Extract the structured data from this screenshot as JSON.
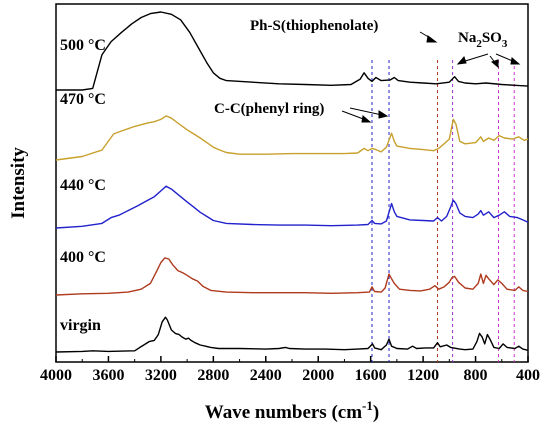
{
  "chart_data": {
    "type": "line",
    "title": "",
    "xlabel": "Wave numbers (cm",
    "xlabel_sup": "-1",
    "xlabel_close": ")",
    "ylabel": "Intensity",
    "xlim": [
      4000,
      400
    ],
    "x_reversed": true,
    "xticks": [
      4000,
      3600,
      3200,
      2800,
      2400,
      2000,
      1600,
      1200,
      800,
      400
    ],
    "yticks": false,
    "grid": false,
    "series": [
      {
        "name": "500 °C",
        "color": "#000000",
        "baseline": 4.0,
        "points": [
          [
            4000,
            0
          ],
          [
            3800,
            0
          ],
          [
            3720,
            0.02
          ],
          [
            3650,
            0.45
          ],
          [
            3580,
            0.62
          ],
          [
            3500,
            0.74
          ],
          [
            3420,
            0.85
          ],
          [
            3350,
            0.93
          ],
          [
            3280,
            0.98
          ],
          [
            3200,
            1.0
          ],
          [
            3120,
            0.97
          ],
          [
            3050,
            0.9
          ],
          [
            2980,
            0.74
          ],
          [
            2900,
            0.5
          ],
          [
            2850,
            0.35
          ],
          [
            2800,
            0.22
          ],
          [
            2750,
            0.15
          ],
          [
            2700,
            0.12
          ],
          [
            2500,
            0.1
          ],
          [
            2300,
            0.08
          ],
          [
            2100,
            0.07
          ],
          [
            1900,
            0.06
          ],
          [
            1750,
            0.07
          ],
          [
            1680,
            0.14
          ],
          [
            1650,
            0.22
          ],
          [
            1620,
            0.15
          ],
          [
            1590,
            0.11
          ],
          [
            1560,
            0.16
          ],
          [
            1520,
            0.12
          ],
          [
            1450,
            0.13
          ],
          [
            1420,
            0.16
          ],
          [
            1390,
            0.12
          ],
          [
            1300,
            0.1
          ],
          [
            1200,
            0.09
          ],
          [
            1100,
            0.08
          ],
          [
            1000,
            0.1
          ],
          [
            960,
            0.17
          ],
          [
            930,
            0.11
          ],
          [
            880,
            0.09
          ],
          [
            800,
            0.08
          ],
          [
            720,
            0.09
          ],
          [
            600,
            0.07
          ],
          [
            500,
            0.06
          ],
          [
            400,
            0.05
          ]
        ]
      },
      {
        "name": "470 °C",
        "color": "#c8a02c",
        "baseline": 3.0,
        "points": [
          [
            4000,
            0
          ],
          [
            3800,
            0.06
          ],
          [
            3650,
            0.17
          ],
          [
            3560,
            0.45
          ],
          [
            3500,
            0.5
          ],
          [
            3400,
            0.58
          ],
          [
            3300,
            0.64
          ],
          [
            3250,
            0.66
          ],
          [
            3200,
            0.7
          ],
          [
            3160,
            0.76
          ],
          [
            3120,
            0.72
          ],
          [
            3060,
            0.62
          ],
          [
            3000,
            0.52
          ],
          [
            2950,
            0.45
          ],
          [
            2900,
            0.38
          ],
          [
            2850,
            0.3
          ],
          [
            2800,
            0.22
          ],
          [
            2750,
            0.17
          ],
          [
            2700,
            0.13
          ],
          [
            2600,
            0.1
          ],
          [
            2400,
            0.1
          ],
          [
            2200,
            0.11
          ],
          [
            2000,
            0.11
          ],
          [
            1800,
            0.11
          ],
          [
            1700,
            0.12
          ],
          [
            1650,
            0.2
          ],
          [
            1620,
            0.16
          ],
          [
            1590,
            0.2
          ],
          [
            1560,
            0.18
          ],
          [
            1520,
            0.14
          ],
          [
            1480,
            0.22
          ],
          [
            1440,
            0.46
          ],
          [
            1420,
            0.32
          ],
          [
            1400,
            0.24
          ],
          [
            1300,
            0.2
          ],
          [
            1200,
            0.18
          ],
          [
            1120,
            0.16
          ],
          [
            1080,
            0.2
          ],
          [
            1040,
            0.28
          ],
          [
            1000,
            0.36
          ],
          [
            970,
            0.7
          ],
          [
            950,
            0.62
          ],
          [
            920,
            0.32
          ],
          [
            880,
            0.28
          ],
          [
            800,
            0.3
          ],
          [
            760,
            0.4
          ],
          [
            740,
            0.32
          ],
          [
            700,
            0.38
          ],
          [
            660,
            0.34
          ],
          [
            620,
            0.42
          ],
          [
            580,
            0.38
          ],
          [
            520,
            0.36
          ],
          [
            470,
            0.4
          ],
          [
            430,
            0.34
          ],
          [
            400,
            0.36
          ]
        ]
      },
      {
        "name": "440 °C",
        "color": "#2222cc",
        "baseline": 2.0,
        "points": [
          [
            4000,
            0
          ],
          [
            3800,
            0.03
          ],
          [
            3650,
            0.08
          ],
          [
            3580,
            0.18
          ],
          [
            3520,
            0.22
          ],
          [
            3450,
            0.3
          ],
          [
            3380,
            0.38
          ],
          [
            3300,
            0.48
          ],
          [
            3250,
            0.54
          ],
          [
            3200,
            0.64
          ],
          [
            3160,
            0.72
          ],
          [
            3120,
            0.67
          ],
          [
            3070,
            0.58
          ],
          [
            3000,
            0.45
          ],
          [
            2950,
            0.36
          ],
          [
            2900,
            0.27
          ],
          [
            2850,
            0.2
          ],
          [
            2800,
            0.13
          ],
          [
            2700,
            0.08
          ],
          [
            2500,
            0.06
          ],
          [
            2300,
            0.05
          ],
          [
            2100,
            0.05
          ],
          [
            1900,
            0.04
          ],
          [
            1700,
            0.05
          ],
          [
            1620,
            0.06
          ],
          [
            1590,
            0.13
          ],
          [
            1570,
            0.08
          ],
          [
            1520,
            0.07
          ],
          [
            1480,
            0.12
          ],
          [
            1440,
            0.42
          ],
          [
            1420,
            0.28
          ],
          [
            1400,
            0.2
          ],
          [
            1300,
            0.14
          ],
          [
            1200,
            0.13
          ],
          [
            1120,
            0.12
          ],
          [
            1090,
            0.18
          ],
          [
            1060,
            0.12
          ],
          [
            1020,
            0.2
          ],
          [
            990,
            0.36
          ],
          [
            970,
            0.48
          ],
          [
            950,
            0.42
          ],
          [
            920,
            0.26
          ],
          [
            880,
            0.2
          ],
          [
            820,
            0.18
          ],
          [
            780,
            0.24
          ],
          [
            760,
            0.3
          ],
          [
            740,
            0.22
          ],
          [
            700,
            0.28
          ],
          [
            660,
            0.18
          ],
          [
            620,
            0.22
          ],
          [
            580,
            0.28
          ],
          [
            540,
            0.2
          ],
          [
            480,
            0.18
          ],
          [
            420,
            0.12
          ],
          [
            400,
            0.1
          ]
        ]
      },
      {
        "name": "400 °C",
        "color": "#b03a1e",
        "baseline": 1.0,
        "points": [
          [
            4000,
            0
          ],
          [
            3800,
            0.02
          ],
          [
            3600,
            0.03
          ],
          [
            3450,
            0.05
          ],
          [
            3350,
            0.1
          ],
          [
            3280,
            0.2
          ],
          [
            3230,
            0.42
          ],
          [
            3200,
            0.56
          ],
          [
            3170,
            0.64
          ],
          [
            3140,
            0.62
          ],
          [
            3110,
            0.52
          ],
          [
            3070,
            0.42
          ],
          [
            3030,
            0.38
          ],
          [
            3000,
            0.34
          ],
          [
            2960,
            0.28
          ],
          [
            2920,
            0.24
          ],
          [
            2880,
            0.15
          ],
          [
            2820,
            0.08
          ],
          [
            2700,
            0.05
          ],
          [
            2500,
            0.04
          ],
          [
            2300,
            0.04
          ],
          [
            2100,
            0.04
          ],
          [
            1900,
            0.03
          ],
          [
            1700,
            0.04
          ],
          [
            1610,
            0.05
          ],
          [
            1590,
            0.14
          ],
          [
            1570,
            0.06
          ],
          [
            1520,
            0.05
          ],
          [
            1490,
            0.12
          ],
          [
            1460,
            0.36
          ],
          [
            1440,
            0.28
          ],
          [
            1420,
            0.2
          ],
          [
            1380,
            0.1
          ],
          [
            1300,
            0.08
          ],
          [
            1220,
            0.07
          ],
          [
            1150,
            0.1
          ],
          [
            1110,
            0.16
          ],
          [
            1080,
            0.1
          ],
          [
            1040,
            0.14
          ],
          [
            1000,
            0.22
          ],
          [
            980,
            0.3
          ],
          [
            960,
            0.32
          ],
          [
            930,
            0.22
          ],
          [
            880,
            0.12
          ],
          [
            820,
            0.1
          ],
          [
            780,
            0.2
          ],
          [
            760,
            0.36
          ],
          [
            740,
            0.2
          ],
          [
            720,
            0.34
          ],
          [
            700,
            0.28
          ],
          [
            660,
            0.18
          ],
          [
            630,
            0.26
          ],
          [
            600,
            0.2
          ],
          [
            560,
            0.1
          ],
          [
            500,
            0.08
          ],
          [
            470,
            0.14
          ],
          [
            440,
            0.08
          ],
          [
            400,
            0.06
          ]
        ]
      },
      {
        "name": "virgin",
        "color": "#000000",
        "baseline": 0.0,
        "points": [
          [
            4000,
            0
          ],
          [
            3800,
            0.01
          ],
          [
            3720,
            0.02
          ],
          [
            3600,
            0.01
          ],
          [
            3400,
            0.02
          ],
          [
            3360,
            0.08
          ],
          [
            3330,
            0.12
          ],
          [
            3290,
            0.18
          ],
          [
            3250,
            0.2
          ],
          [
            3220,
            0.3
          ],
          [
            3190,
            0.52
          ],
          [
            3165,
            0.6
          ],
          [
            3150,
            0.55
          ],
          [
            3120,
            0.38
          ],
          [
            3090,
            0.32
          ],
          [
            3060,
            0.3
          ],
          [
            3040,
            0.26
          ],
          [
            3010,
            0.22
          ],
          [
            2990,
            0.24
          ],
          [
            2970,
            0.2
          ],
          [
            2940,
            0.16
          ],
          [
            2900,
            0.12
          ],
          [
            2860,
            0.1
          ],
          [
            2820,
            0.08
          ],
          [
            2760,
            0.06
          ],
          [
            2700,
            0.06
          ],
          [
            2600,
            0.06
          ],
          [
            2400,
            0.05
          ],
          [
            2300,
            0.06
          ],
          [
            2250,
            0.08
          ],
          [
            2220,
            0.06
          ],
          [
            2100,
            0.05
          ],
          [
            1950,
            0.05
          ],
          [
            1800,
            0.04
          ],
          [
            1700,
            0.05
          ],
          [
            1620,
            0.06
          ],
          [
            1585,
            0.14
          ],
          [
            1570,
            0.07
          ],
          [
            1520,
            0.04
          ],
          [
            1480,
            0.12
          ],
          [
            1460,
            0.22
          ],
          [
            1440,
            0.1
          ],
          [
            1400,
            0.06
          ],
          [
            1320,
            0.05
          ],
          [
            1280,
            0.1
          ],
          [
            1250,
            0.06
          ],
          [
            1180,
            0.07
          ],
          [
            1120,
            0.07
          ],
          [
            1090,
            0.16
          ],
          [
            1070,
            0.09
          ],
          [
            1020,
            0.12
          ],
          [
            990,
            0.08
          ],
          [
            920,
            0.05
          ],
          [
            880,
            0.04
          ],
          [
            820,
            0.05
          ],
          [
            790,
            0.18
          ],
          [
            770,
            0.32
          ],
          [
            750,
            0.26
          ],
          [
            730,
            0.14
          ],
          [
            710,
            0.3
          ],
          [
            690,
            0.22
          ],
          [
            660,
            0.08
          ],
          [
            620,
            0.06
          ],
          [
            590,
            0.14
          ],
          [
            560,
            0.08
          ],
          [
            500,
            0.06
          ],
          [
            470,
            0.1
          ],
          [
            440,
            0.05
          ],
          [
            400,
            0.03
          ]
        ]
      }
    ],
    "reference_lines": [
      {
        "x": 1590,
        "color": "#2222cc"
      },
      {
        "x": 1460,
        "color": "#2222cc"
      },
      {
        "x": 1090,
        "color": "#b03a1e"
      },
      {
        "x": 975,
        "color": "#9933cc"
      },
      {
        "x": 625,
        "color": "#cc33cc"
      },
      {
        "x": 505,
        "color": "#cc33cc"
      }
    ],
    "annotations": {
      "phenyl": "C-C(phenyl  ring)",
      "thiophenolate": "Ph-S(thiophenolate)",
      "sulfite_main": "Na",
      "sulfite_sub1": "2",
      "sulfite_mid": "SO",
      "sulfite_sub2": "3"
    }
  }
}
